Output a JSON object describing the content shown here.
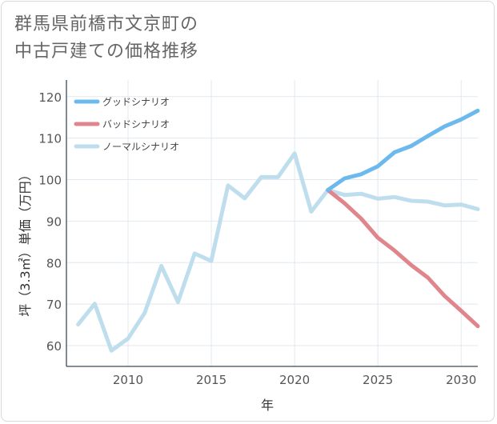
{
  "chart_data": {
    "type": "line",
    "title_lines": [
      "群馬県前橋市文京町の",
      "中古戸建ての価格推移"
    ],
    "xlabel": "年",
    "ylabel": "坪（3.3㎡）単価（万円）",
    "xlim": [
      2006.3,
      2031
    ],
    "ylim": [
      55,
      124
    ],
    "xticks": [
      2010,
      2015,
      2020,
      2025,
      2030
    ],
    "yticks": [
      60,
      70,
      80,
      90,
      100,
      110,
      120
    ],
    "legend_position": "top-left",
    "series": [
      {
        "name": "グッドシナリオ",
        "color": "#6cb9ee",
        "x": [
          2022,
          2023,
          2024,
          2025,
          2026,
          2027,
          2028,
          2029,
          2030,
          2031
        ],
        "y": [
          97.5,
          100.3,
          101.3,
          103.2,
          106.6,
          108.1,
          110.5,
          112.8,
          114.5,
          116.6
        ]
      },
      {
        "name": "バッドシナリオ",
        "color": "#e0858c",
        "x": [
          2022,
          2023,
          2024,
          2025,
          2026,
          2027,
          2028,
          2029,
          2030,
          2031
        ],
        "y": [
          97.5,
          94.3,
          90.6,
          86.0,
          82.9,
          79.4,
          76.4,
          72.0,
          68.4,
          64.7
        ]
      },
      {
        "name": "ノーマルシナリオ",
        "color": "#bfdeed",
        "x": [
          2007,
          2008,
          2009,
          2010,
          2011,
          2012,
          2013,
          2014,
          2015,
          2016,
          2017,
          2018,
          2019,
          2020,
          2021,
          2022,
          2023,
          2024,
          2025,
          2026,
          2027,
          2028,
          2029,
          2030,
          2031
        ],
        "y": [
          65.1,
          70.1,
          58.8,
          61.7,
          67.9,
          79.2,
          70.5,
          82.2,
          80.4,
          98.6,
          95.5,
          100.6,
          100.6,
          106.3,
          92.3,
          97.5,
          96.3,
          96.6,
          95.4,
          95.8,
          94.9,
          94.7,
          93.8,
          94.0,
          92.9
        ]
      }
    ]
  }
}
